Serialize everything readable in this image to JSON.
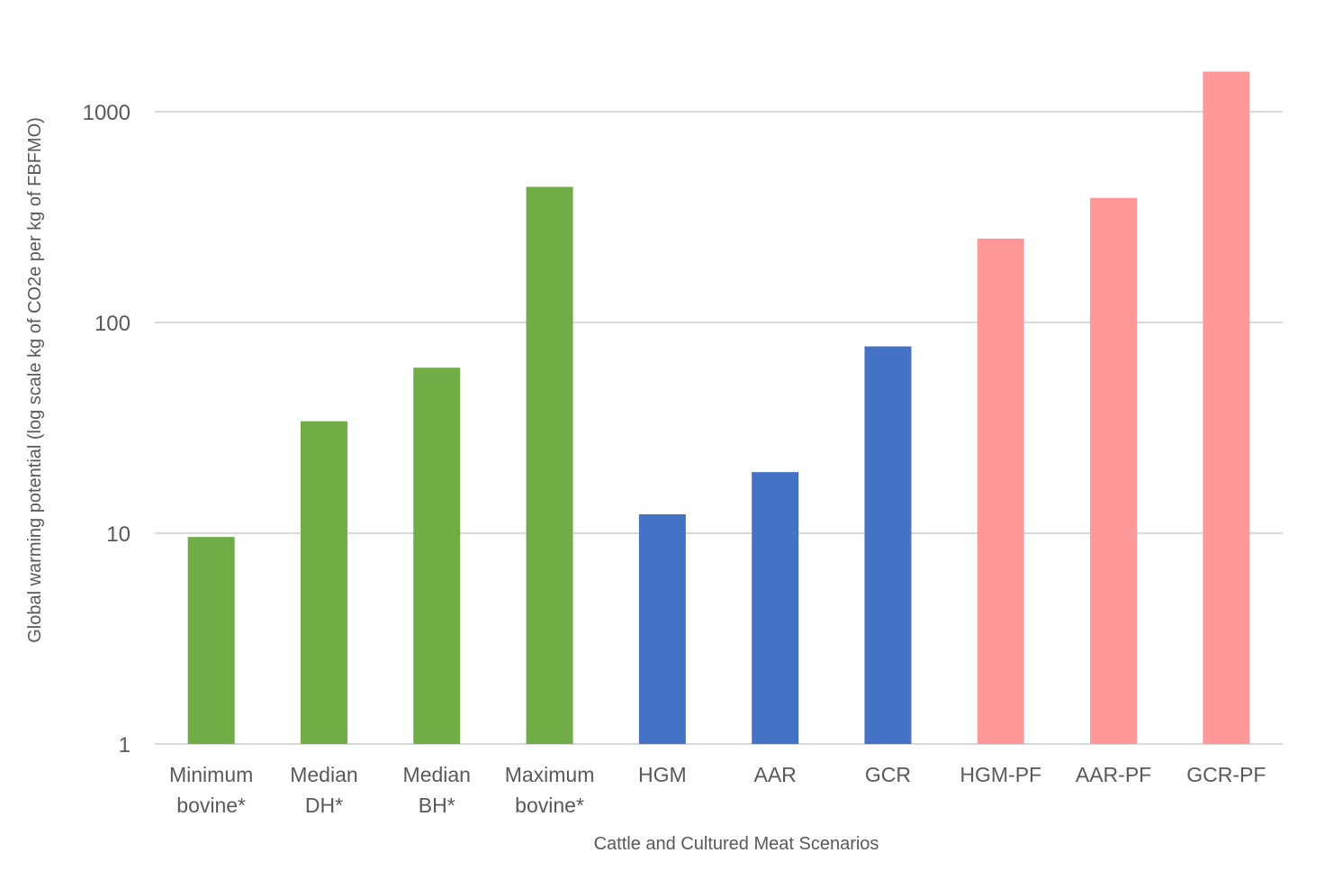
{
  "chart_data": {
    "type": "bar",
    "xlabel": "Cattle and Cultured Meat Scenarios",
    "ylabel": "Global warming potential (log scale kg of CO2e per kg of FBFMO)",
    "yscale": "log",
    "ylim": [
      1,
      1500
    ],
    "yticks": [
      1,
      10,
      100,
      1000
    ],
    "grid": true,
    "categories": [
      [
        "Minimum",
        "bovine*"
      ],
      [
        "Median",
        "DH*"
      ],
      [
        "Median",
        "BH*"
      ],
      [
        "Maximum",
        "bovine*"
      ],
      [
        "HGM"
      ],
      [
        "AAR"
      ],
      [
        "GCR"
      ],
      [
        "HGM-PF"
      ],
      [
        "AAR-PF"
      ],
      [
        "GCR-PF"
      ]
    ],
    "values": [
      9.6,
      34,
      61,
      440,
      12.3,
      19.5,
      77,
      250,
      390,
      1550
    ],
    "bar_colors": [
      "#70ad47",
      "#70ad47",
      "#70ad47",
      "#70ad47",
      "#4472c4",
      "#4472c4",
      "#4472c4",
      "#ff9999",
      "#ff9999",
      "#ff9999"
    ]
  }
}
